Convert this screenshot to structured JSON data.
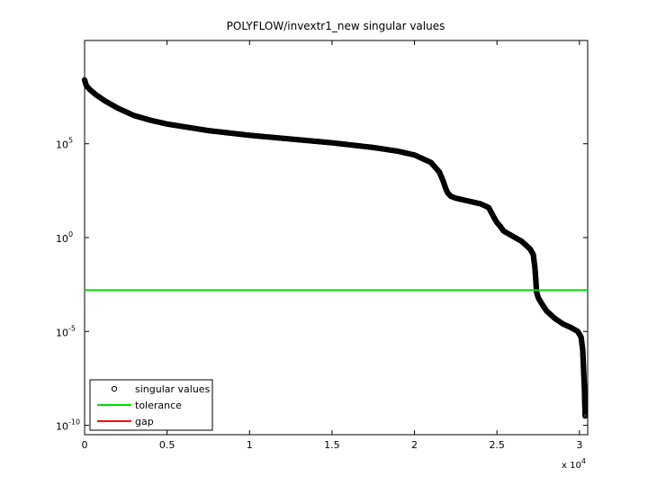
{
  "chart_data": {
    "type": "scatter",
    "title": "POLYFLOW/invextr1_new singular values",
    "xlabel": "",
    "ylabel": "",
    "x_multiplier_base": "x 10",
    "x_multiplier_exp": "4",
    "xlim": [
      0,
      30500
    ],
    "ylim_log10": [
      -10.5,
      10.5
    ],
    "y_scale": "log",
    "grid": false,
    "legend_position": "bottom-left",
    "x_ticks": [
      {
        "v": 0,
        "label": "0"
      },
      {
        "v": 5000,
        "label": "0.5"
      },
      {
        "v": 10000,
        "label": "1"
      },
      {
        "v": 15000,
        "label": "1.5"
      },
      {
        "v": 20000,
        "label": "2"
      },
      {
        "v": 25000,
        "label": "2.5"
      },
      {
        "v": 30000,
        "label": "3"
      }
    ],
    "y_ticks": [
      {
        "exp": 5,
        "base": "10",
        "sup": "5"
      },
      {
        "exp": 0,
        "base": "10",
        "sup": "0"
      },
      {
        "exp": -5,
        "base": "10",
        "sup": "-5"
      },
      {
        "exp": -10,
        "base": "10",
        "sup": "-10"
      }
    ],
    "series": [
      {
        "name": "singular values",
        "marker": "circle",
        "color": "#000000",
        "x": [
          0,
          100,
          300,
          700,
          1200,
          2000,
          3000,
          4000,
          5000,
          7500,
          10000,
          12500,
          15000,
          17500,
          19000,
          20000,
          21000,
          21500,
          21700,
          21900,
          22000,
          22200,
          22500,
          23000,
          24000,
          24500,
          24800,
          25000,
          25200,
          25400,
          25700,
          26000,
          26500,
          27000,
          27200,
          27300,
          27350,
          27400,
          27450,
          27500,
          27700,
          28000,
          28500,
          29000,
          29500,
          29900,
          30100,
          30200,
          30250,
          30300,
          30330,
          30350
        ],
        "log10_y": [
          8.4,
          8.1,
          7.9,
          7.6,
          7.3,
          6.9,
          6.5,
          6.25,
          6.05,
          5.7,
          5.45,
          5.25,
          5.05,
          4.8,
          4.6,
          4.4,
          4.0,
          3.5,
          3.1,
          2.6,
          2.4,
          2.2,
          2.1,
          2.0,
          1.8,
          1.6,
          1.1,
          0.8,
          0.6,
          0.35,
          0.2,
          0.05,
          -0.2,
          -0.6,
          -0.9,
          -1.6,
          -2.2,
          -2.9,
          -3.05,
          -3.2,
          -3.5,
          -3.9,
          -4.3,
          -4.6,
          -4.8,
          -5.0,
          -5.3,
          -6.0,
          -7.0,
          -8.0,
          -9.0,
          -9.5
        ]
      },
      {
        "name": "tolerance",
        "color": "#00dd00",
        "log10_y": -2.8
      },
      {
        "name": "gap",
        "color": "#ff0000"
      }
    ]
  }
}
